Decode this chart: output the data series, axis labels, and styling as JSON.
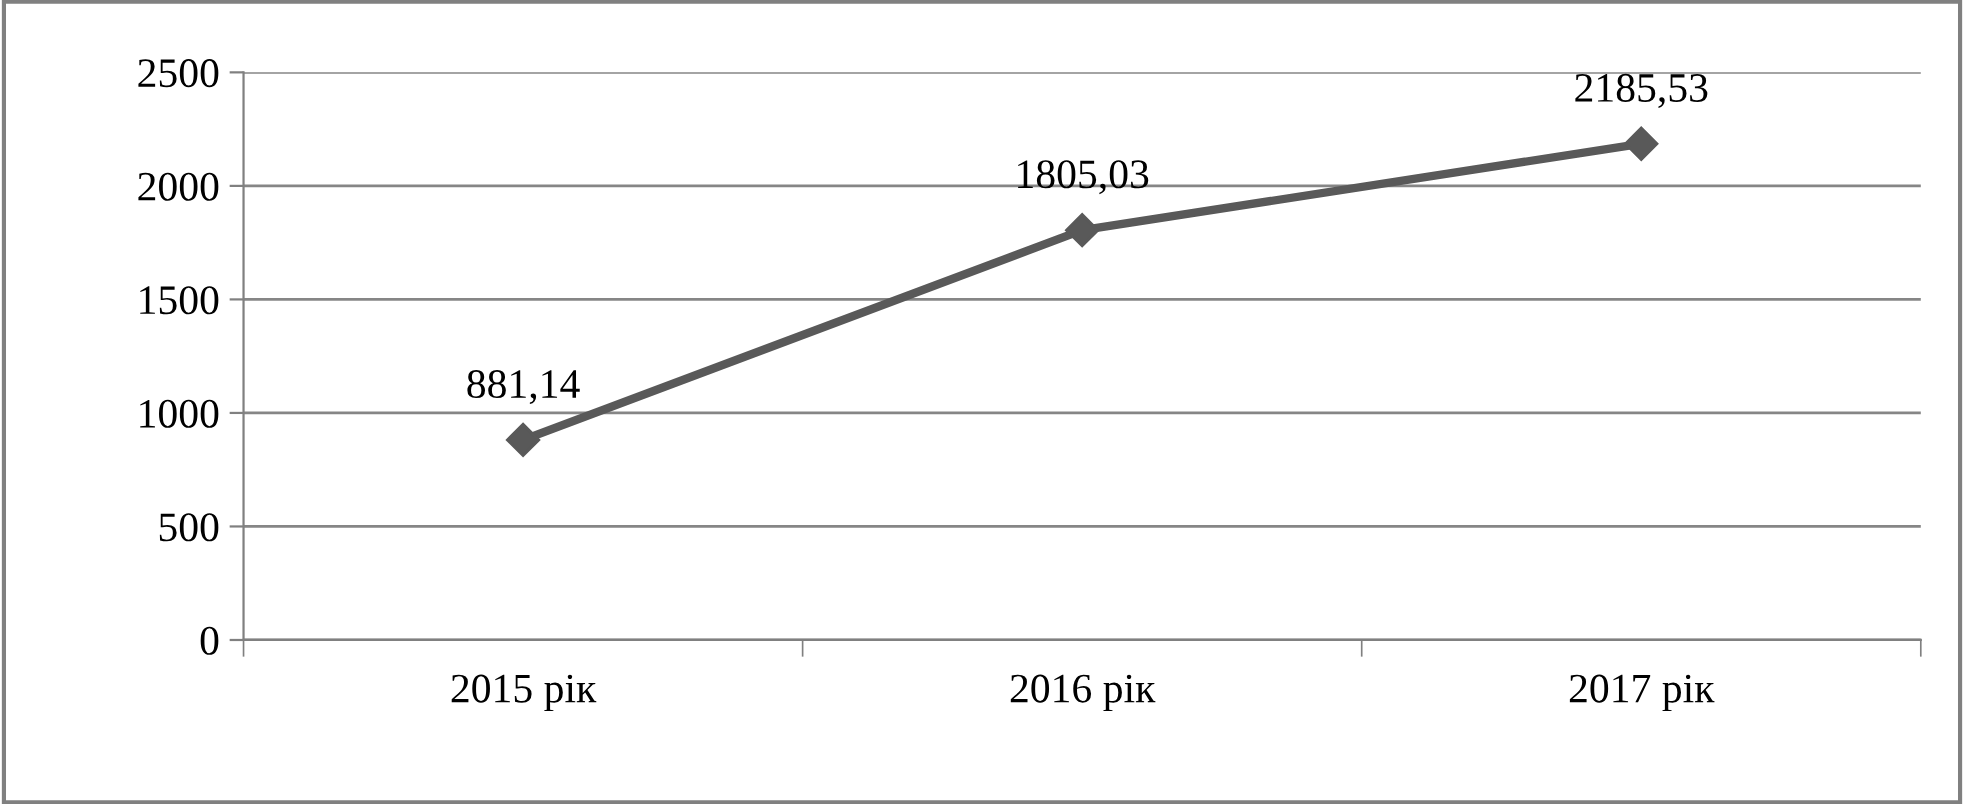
{
  "chart_data": {
    "type": "line",
    "categories": [
      "2015 рік",
      "2016 рік",
      "2017 рік"
    ],
    "series": [
      {
        "color": "#595959",
        "values": [
          881.14,
          1805.03,
          2185.53
        ],
        "value_labels": [
          "881,14",
          "1805,03",
          "2185,53"
        ]
      }
    ],
    "ylim": [
      0,
      2500
    ],
    "yticks": [
      0,
      500,
      1000,
      1500,
      2000,
      2500
    ],
    "grid": "y",
    "marker": "diamond",
    "line_style": "solid",
    "legend": false
  }
}
